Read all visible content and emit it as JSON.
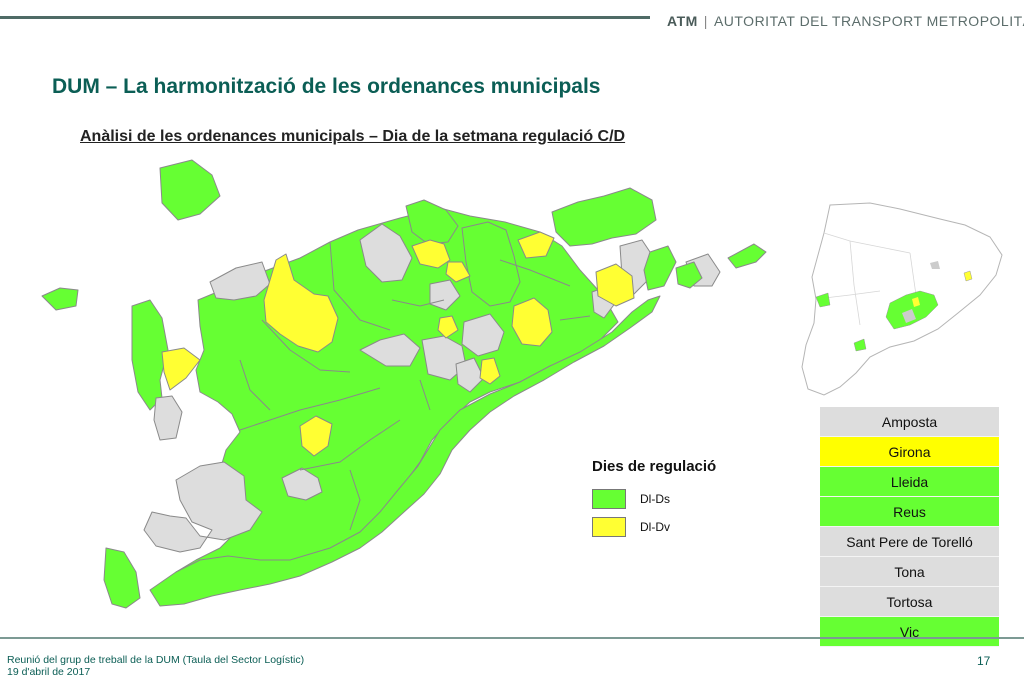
{
  "header": {
    "brand_short": "ATM",
    "brand_full": "AUTORITAT DEL TRANSPORT METROPOLITÀ"
  },
  "title": "DUM – La harmonització de les ordenances municipals",
  "subtitle": "Anàlisi de les ordenances municipals – Dia de la setmana  regulació C/D",
  "colors": {
    "green": "#66ff33",
    "yellow": "#ffff33",
    "grey": "#dddddd",
    "border": "#8a8a8a"
  },
  "legend": {
    "title": "Dies de regulació",
    "items": [
      {
        "label": "Dl-Ds",
        "color": "#66ff33"
      },
      {
        "label": "Dl-Dv",
        "color": "#ffff33"
      }
    ]
  },
  "cities": [
    {
      "name": "Amposta",
      "color": "#dddddd"
    },
    {
      "name": "Girona",
      "color": "#ffff00"
    },
    {
      "name": "Lleida",
      "color": "#66ff33"
    },
    {
      "name": "Reus",
      "color": "#66ff33"
    },
    {
      "name": "Sant Pere de Torelló",
      "color": "#dddddd"
    },
    {
      "name": "Tona",
      "color": "#dddddd"
    },
    {
      "name": "Tortosa",
      "color": "#dddddd"
    },
    {
      "name": "Vic",
      "color": "#66ff33"
    }
  ],
  "footer": {
    "line1": "Reunió del grup de treball de la DUM (Taula del Sector Logístic)",
    "line2": "19 d'abril de 2017",
    "page": "17"
  }
}
